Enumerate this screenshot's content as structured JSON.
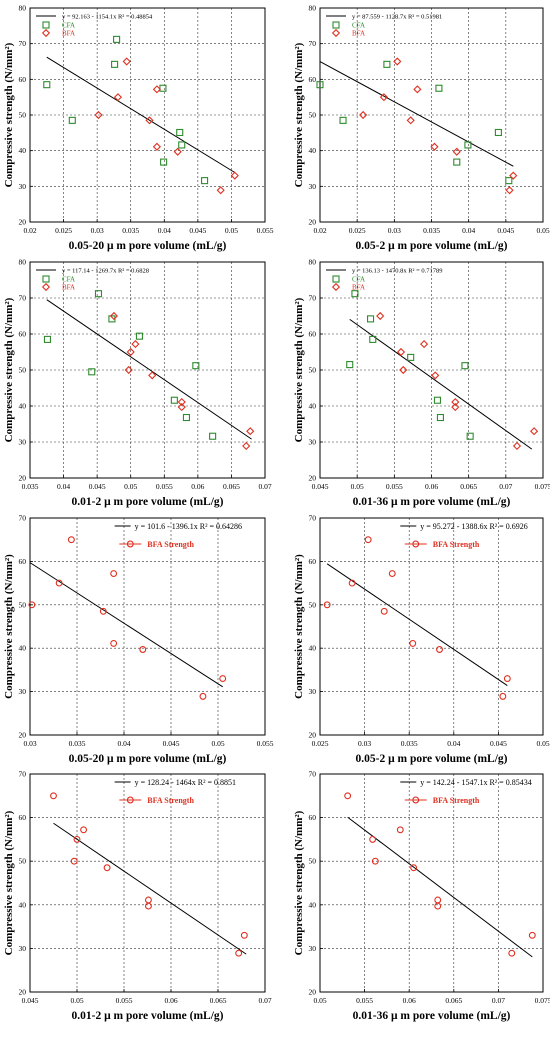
{
  "chart_data": [
    {
      "type": "scatter",
      "xlabel": "0.05-20 μ m pore volume (mL/g)",
      "ylabel": "Compressive strength (N/mm²)",
      "xlim": [
        0.02,
        0.055
      ],
      "ylim": [
        20,
        80
      ],
      "xticks": [
        0.02,
        0.025,
        0.03,
        0.035,
        0.04,
        0.045,
        0.05,
        0.055
      ],
      "yticks": [
        20,
        30,
        40,
        50,
        60,
        70,
        80
      ],
      "grid": true,
      "legend": "top-left",
      "equation": "y = 92.163 - 1154.1x   R² = 0.48854",
      "fit": {
        "intercept": 92.163,
        "slope": -1154.1,
        "x": [
          0.0225,
          0.0505
        ]
      },
      "series": [
        {
          "name": "CFA",
          "marker": "square",
          "color": "#2e8b2e",
          "points": [
            [
              0.0225,
              58.5
            ],
            [
              0.0263,
              48.5
            ],
            [
              0.0326,
              64.2
            ],
            [
              0.0329,
              71.2
            ],
            [
              0.0398,
              57.5
            ],
            [
              0.0399,
              36.8
            ],
            [
              0.0423,
              45.1
            ],
            [
              0.0426,
              41.6
            ],
            [
              0.046,
              31.6
            ]
          ]
        },
        {
          "name": "BFA",
          "marker": "diamond",
          "color": "#e03020",
          "points": [
            [
              0.0302,
              50.0
            ],
            [
              0.0331,
              55.0
            ],
            [
              0.0344,
              65.0
            ],
            [
              0.0378,
              48.5
            ],
            [
              0.0389,
              57.2
            ],
            [
              0.0389,
              41.1
            ],
            [
              0.042,
              39.7
            ],
            [
              0.0484,
              28.9
            ],
            [
              0.0505,
              33.0
            ]
          ]
        }
      ]
    },
    {
      "type": "scatter",
      "xlabel": "0.05-2 μ m pore volume (mL/g)",
      "ylabel": "Compressive strength (N/mm²)",
      "xlim": [
        0.02,
        0.05
      ],
      "ylim": [
        20,
        80
      ],
      "xticks": [
        0.02,
        0.025,
        0.03,
        0.035,
        0.04,
        0.045,
        0.05
      ],
      "yticks": [
        20,
        30,
        40,
        50,
        60,
        70,
        80
      ],
      "grid": true,
      "legend": "top-left",
      "equation": "y = 87.559 - 1128.7x   R² = 0.51981",
      "fit": {
        "intercept": 87.559,
        "slope": -1128.7,
        "x": [
          0.02,
          0.046
        ]
      },
      "series": [
        {
          "name": "CFA",
          "marker": "square",
          "color": "#2e8b2e",
          "points": [
            [
              0.02,
              58.5
            ],
            [
              0.0231,
              48.5
            ],
            [
              0.029,
              64.2
            ],
            [
              0.036,
              57.5
            ],
            [
              0.0384,
              36.8
            ],
            [
              0.0399,
              41.6
            ],
            [
              0.044,
              45.1
            ],
            [
              0.0454,
              31.6
            ]
          ]
        },
        {
          "name": "BFA",
          "marker": "diamond",
          "color": "#e03020",
          "points": [
            [
              0.0258,
              50.0
            ],
            [
              0.0286,
              55.0
            ],
            [
              0.0304,
              65.0
            ],
            [
              0.0322,
              48.5
            ],
            [
              0.0331,
              57.2
            ],
            [
              0.0354,
              41.1
            ],
            [
              0.0384,
              39.7
            ],
            [
              0.0455,
              28.9
            ],
            [
              0.046,
              33.0
            ]
          ]
        }
      ]
    },
    {
      "type": "scatter",
      "xlabel": "0.01-2 μ m pore volume (mL/g)",
      "ylabel": "Compressive strength (N/mm²)",
      "xlim": [
        0.035,
        0.07
      ],
      "ylim": [
        20,
        80
      ],
      "xticks": [
        0.035,
        0.04,
        0.045,
        0.05,
        0.055,
        0.06,
        0.065,
        0.07
      ],
      "yticks": [
        20,
        30,
        40,
        50,
        60,
        70,
        80
      ],
      "grid": true,
      "legend": "top-left",
      "equation": "y = 117.14 - 1269.7x   R² = 0.6828",
      "fit": {
        "intercept": 117.14,
        "slope": -1269.7,
        "x": [
          0.0375,
          0.068
        ]
      },
      "series": [
        {
          "name": "CFA",
          "marker": "square",
          "color": "#2e8b2e",
          "points": [
            [
              0.0376,
              58.5
            ],
            [
              0.0442,
              49.5
            ],
            [
              0.0452,
              71.2
            ],
            [
              0.0472,
              64.2
            ],
            [
              0.0513,
              59.4
            ],
            [
              0.0565,
              41.6
            ],
            [
              0.0583,
              36.8
            ],
            [
              0.0597,
              51.2
            ],
            [
              0.0622,
              31.6
            ]
          ]
        },
        {
          "name": "BFA",
          "marker": "diamond",
          "color": "#e03020",
          "points": [
            [
              0.0475,
              65.0
            ],
            [
              0.0497,
              50.0
            ],
            [
              0.05,
              55.0
            ],
            [
              0.0507,
              57.2
            ],
            [
              0.0532,
              48.5
            ],
            [
              0.0576,
              41.1
            ],
            [
              0.0576,
              39.7
            ],
            [
              0.0672,
              28.9
            ],
            [
              0.0678,
              33.0
            ]
          ]
        }
      ]
    },
    {
      "type": "scatter",
      "xlabel": "0.01-36 μ m pore volume (mL/g)",
      "ylabel": "Compressive strength (N/mm²)",
      "xlim": [
        0.045,
        0.075
      ],
      "ylim": [
        20,
        80
      ],
      "xticks": [
        0.045,
        0.05,
        0.055,
        0.06,
        0.065,
        0.07,
        0.075
      ],
      "yticks": [
        20,
        30,
        40,
        50,
        60,
        70,
        80
      ],
      "grid": true,
      "legend": "top-left",
      "equation": "y = 136.13 - 1470.8x   R² = 0.71789",
      "fit": {
        "intercept": 136.13,
        "slope": -1470.8,
        "x": [
          0.049,
          0.0735
        ]
      },
      "series": [
        {
          "name": "CFA",
          "marker": "square",
          "color": "#2e8b2e",
          "points": [
            [
              0.049,
              51.5
            ],
            [
              0.0497,
              71.2
            ],
            [
              0.0518,
              64.2
            ],
            [
              0.0521,
              58.5
            ],
            [
              0.0572,
              53.5
            ],
            [
              0.0608,
              41.6
            ],
            [
              0.0612,
              36.8
            ],
            [
              0.0645,
              51.2
            ],
            [
              0.0652,
              31.6
            ]
          ]
        },
        {
          "name": "BFA",
          "marker": "diamond",
          "color": "#e03020",
          "points": [
            [
              0.0531,
              65.0
            ],
            [
              0.0559,
              55.0
            ],
            [
              0.0562,
              50.0
            ],
            [
              0.059,
              57.2
            ],
            [
              0.0605,
              48.5
            ],
            [
              0.0632,
              41.1
            ],
            [
              0.0632,
              39.7
            ],
            [
              0.0715,
              28.9
            ],
            [
              0.0738,
              33.0
            ]
          ]
        }
      ]
    },
    {
      "type": "scatter",
      "xlabel": "0.05-20 μ m pore volume (mL/g)",
      "ylabel": "Compressive strength (N/mm²)",
      "xlim": [
        0.03,
        0.055
      ],
      "ylim": [
        20,
        70
      ],
      "xticks": [
        0.03,
        0.035,
        0.04,
        0.045,
        0.05,
        0.055
      ],
      "yticks": [
        20,
        30,
        40,
        50,
        60,
        70
      ],
      "grid": true,
      "legend": "inside",
      "equation": "y = 101.6 - 1396.1x   R² = 0.64286",
      "fit": {
        "intercept": 101.6,
        "slope": -1396.1,
        "x": [
          0.03,
          0.0505
        ]
      },
      "series": [
        {
          "name": "BFA Strength",
          "marker": "circle",
          "color": "#e03020",
          "points": [
            [
              0.0302,
              50.0
            ],
            [
              0.0331,
              55.0
            ],
            [
              0.0344,
              65.0
            ],
            [
              0.0378,
              48.5
            ],
            [
              0.0389,
              57.2
            ],
            [
              0.0389,
              41.1
            ],
            [
              0.042,
              39.7
            ],
            [
              0.0484,
              28.9
            ],
            [
              0.0505,
              33.0
            ]
          ]
        }
      ]
    },
    {
      "type": "scatter",
      "xlabel": "0.05-2 μ m pore volume (mL/g)",
      "ylabel": "Compressive strength (N/mm²)",
      "xlim": [
        0.025,
        0.05
      ],
      "ylim": [
        20,
        70
      ],
      "xticks": [
        0.025,
        0.03,
        0.035,
        0.04,
        0.045,
        0.05
      ],
      "yticks": [
        20,
        30,
        40,
        50,
        60,
        70
      ],
      "grid": true,
      "legend": "inside",
      "equation": "y = 95.272 - 1388.6x   R² = 0.6926",
      "fit": {
        "intercept": 95.272,
        "slope": -1388.6,
        "x": [
          0.0258,
          0.046
        ]
      },
      "series": [
        {
          "name": "BFA Strength",
          "marker": "circle",
          "color": "#e03020",
          "points": [
            [
              0.0258,
              50.0
            ],
            [
              0.0286,
              55.0
            ],
            [
              0.0304,
              65.0
            ],
            [
              0.0322,
              48.5
            ],
            [
              0.0331,
              57.2
            ],
            [
              0.0354,
              41.1
            ],
            [
              0.0384,
              39.7
            ],
            [
              0.0455,
              28.9
            ],
            [
              0.046,
              33.0
            ]
          ]
        }
      ]
    },
    {
      "type": "scatter",
      "xlabel": "0.01-2 μ m pore volume (mL/g)",
      "ylabel": "Compressive strength (N/mm²)",
      "xlim": [
        0.045,
        0.07
      ],
      "ylim": [
        20,
        70
      ],
      "xticks": [
        0.045,
        0.05,
        0.055,
        0.06,
        0.065,
        0.07
      ],
      "yticks": [
        20,
        30,
        40,
        50,
        60,
        70
      ],
      "grid": true,
      "legend": "inside",
      "equation": "y = 128.24 - 1464x   R² = 0.8851",
      "fit": {
        "intercept": 128.24,
        "slope": -1464.0,
        "x": [
          0.0475,
          0.068
        ]
      },
      "series": [
        {
          "name": "BFA Strength",
          "marker": "circle",
          "color": "#e03020",
          "points": [
            [
              0.0475,
              65.0
            ],
            [
              0.0497,
              50.0
            ],
            [
              0.05,
              55.0
            ],
            [
              0.0507,
              57.2
            ],
            [
              0.0532,
              48.5
            ],
            [
              0.0576,
              41.1
            ],
            [
              0.0576,
              39.7
            ],
            [
              0.0672,
              28.9
            ],
            [
              0.0678,
              33.0
            ]
          ]
        }
      ]
    },
    {
      "type": "scatter",
      "xlabel": "0.01-36 μ m pore volume (mL/g)",
      "ylabel": "Compressive strength (N/mm²)",
      "xlim": [
        0.05,
        0.075
      ],
      "ylim": [
        20,
        70
      ],
      "xticks": [
        0.05,
        0.055,
        0.06,
        0.065,
        0.07,
        0.075
      ],
      "yticks": [
        20,
        30,
        40,
        50,
        60,
        70
      ],
      "grid": true,
      "legend": "inside",
      "equation": "y = 142.24 - 1547.1x   R² = 0.85434",
      "fit": {
        "intercept": 142.24,
        "slope": -1547.1,
        "x": [
          0.0531,
          0.0738
        ]
      },
      "series": [
        {
          "name": "BFA Strength",
          "marker": "circle",
          "color": "#e03020",
          "points": [
            [
              0.0531,
              65.0
            ],
            [
              0.0559,
              55.0
            ],
            [
              0.0562,
              50.0
            ],
            [
              0.059,
              57.2
            ],
            [
              0.0605,
              48.5
            ],
            [
              0.0632,
              41.1
            ],
            [
              0.0632,
              39.7
            ],
            [
              0.0715,
              28.9
            ],
            [
              0.0738,
              33.0
            ]
          ]
        }
      ]
    }
  ]
}
